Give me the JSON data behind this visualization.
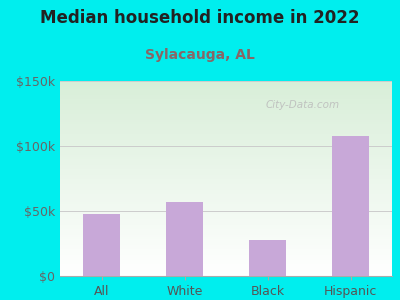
{
  "title": "Median household income in 2022",
  "subtitle": "Sylacauga, AL",
  "categories": [
    "All",
    "White",
    "Black",
    "Hispanic"
  ],
  "values": [
    48000,
    57000,
    28000,
    108000
  ],
  "bar_color": "#c8a8d8",
  "figure_bg_color": "#00EEEE",
  "plot_bg_top": "#d8eed8",
  "plot_bg_bottom": "#ffffff",
  "title_color": "#222222",
  "subtitle_color": "#886666",
  "tick_color": "#666666",
  "xlabel_color": "#555555",
  "grid_color": "#cccccc",
  "ylim": [
    0,
    150000
  ],
  "yticks": [
    0,
    50000,
    100000,
    150000
  ],
  "ytick_labels": [
    "$0",
    "$50k",
    "$100k",
    "$150k"
  ],
  "watermark": "City-Data.com",
  "title_fontsize": 12,
  "subtitle_fontsize": 10,
  "tick_fontsize": 9,
  "bar_width": 0.45
}
